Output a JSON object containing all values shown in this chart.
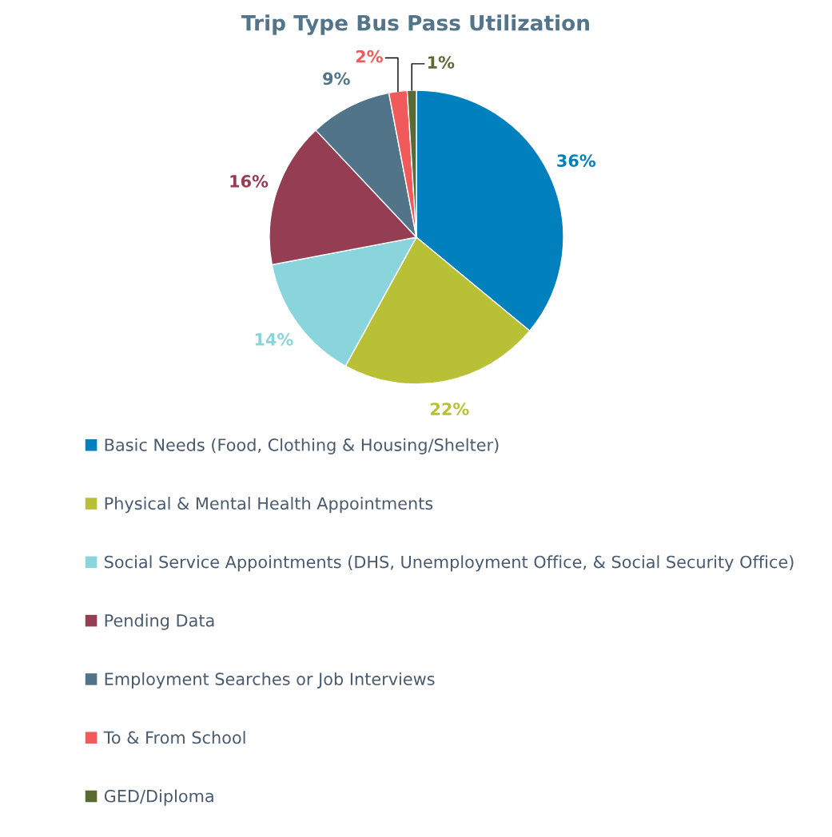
{
  "chart_data": {
    "type": "pie",
    "title": "Trip Type Bus Pass Utilization",
    "categories": [
      "Basic Needs (Food, Clothing & Housing/Shelter)",
      "Physical & Mental Health Appointments",
      "Social Service Appointments (DHS, Unemployment Office, & Social Security Office)",
      "Pending Data",
      "Employment Searches or Job Interviews",
      "To & From School",
      "GED/Diploma"
    ],
    "values": [
      36,
      22,
      14,
      16,
      9,
      2,
      1
    ],
    "colors": [
      "#0080bd",
      "#b8c035",
      "#8ad4dc",
      "#953d53",
      "#527488",
      "#f05a5a",
      "#5a6a35"
    ],
    "value_labels": [
      "36%",
      "22%",
      "14%",
      "16%",
      "9%",
      "2%",
      "1%"
    ],
    "legend": "bottom"
  }
}
